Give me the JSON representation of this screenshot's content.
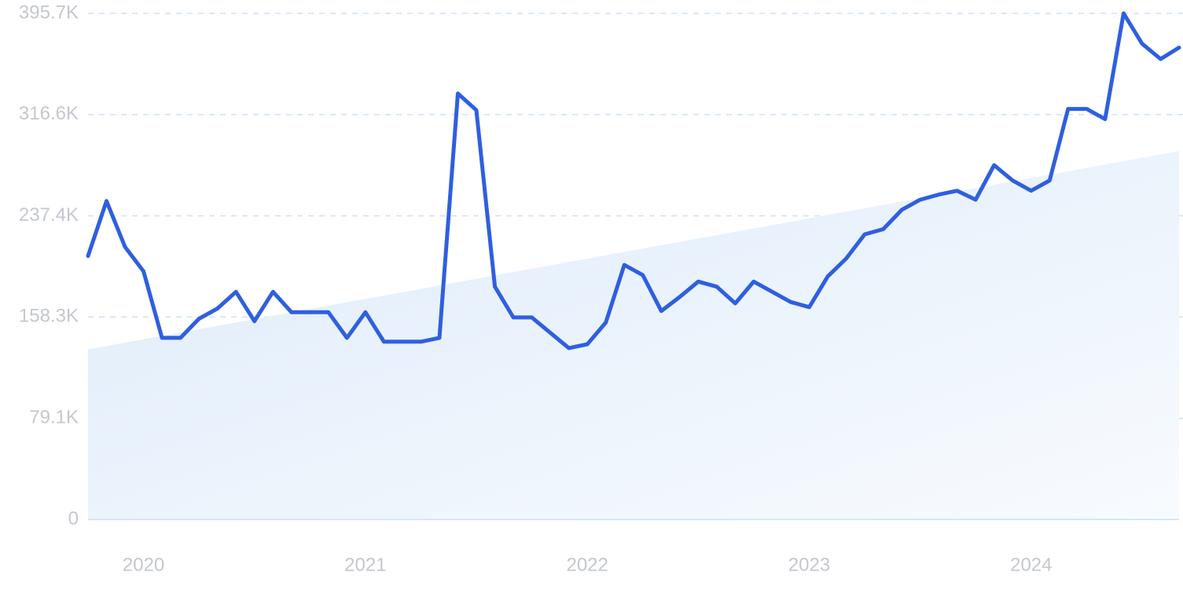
{
  "chart_data": {
    "type": "line",
    "title": "",
    "xlabel": "",
    "ylabel": "",
    "y_ticks": [
      "0",
      "79.1K",
      "158.3K",
      "237.4K",
      "316.6K",
      "395.7K"
    ],
    "y_tick_values": [
      0,
      79100,
      158300,
      237400,
      316600,
      395700
    ],
    "ylim": [
      0,
      395700
    ],
    "x_ticks": [
      "2020",
      "2021",
      "2022",
      "2023",
      "2024"
    ],
    "x_tick_positions": [
      "2020-01",
      "2021-01",
      "2022-01",
      "2023-01",
      "2024-01"
    ],
    "grid": "horizontal dashed",
    "colors": {
      "line": "#2f5fe0",
      "trend_fill_start": "#deebfa",
      "trend_fill_end": "#f7fafe",
      "grid": "#cfe0f5",
      "tick": "#c4c8ce"
    },
    "series": [
      {
        "x": [
          "2019-10",
          "2019-11",
          "2019-12",
          "2020-01",
          "2020-02",
          "2020-03",
          "2020-04",
          "2020-05",
          "2020-06",
          "2020-07",
          "2020-08",
          "2020-09",
          "2020-10",
          "2020-11",
          "2020-12",
          "2021-01",
          "2021-02",
          "2021-03",
          "2021-04",
          "2021-05",
          "2021-06",
          "2021-07",
          "2021-08",
          "2021-09",
          "2021-10",
          "2021-11",
          "2021-12",
          "2022-01",
          "2022-02",
          "2022-03",
          "2022-04",
          "2022-05",
          "2022-06",
          "2022-07",
          "2022-08",
          "2022-09",
          "2022-10",
          "2022-11",
          "2022-12",
          "2023-01",
          "2023-02",
          "2023-03",
          "2023-04",
          "2023-05",
          "2023-06",
          "2023-07",
          "2023-08",
          "2023-09",
          "2023-10",
          "2023-11",
          "2023-12",
          "2024-01",
          "2024-02",
          "2024-03",
          "2024-04",
          "2024-05",
          "2024-06",
          "2024-07",
          "2024-08",
          "2024-09"
        ],
        "values": [
          206000,
          249000,
          213000,
          194000,
          142000,
          142000,
          157000,
          165000,
          178000,
          155000,
          178000,
          162000,
          162000,
          162000,
          142000,
          162000,
          139000,
          139000,
          139000,
          142000,
          333000,
          320000,
          182000,
          158000,
          158000,
          146000,
          134000,
          137000,
          154000,
          199000,
          191000,
          163000,
          174000,
          186000,
          182000,
          169000,
          186000,
          178000,
          170000,
          166000,
          190000,
          204000,
          223000,
          227000,
          242000,
          250000,
          254000,
          257000,
          250000,
          277000,
          265000,
          257000,
          265000,
          321000,
          321000,
          313000,
          395700,
          372000,
          360000,
          369000
        ]
      }
    ],
    "trend": {
      "type": "area",
      "start_value": 133000,
      "end_value": 288000
    }
  }
}
